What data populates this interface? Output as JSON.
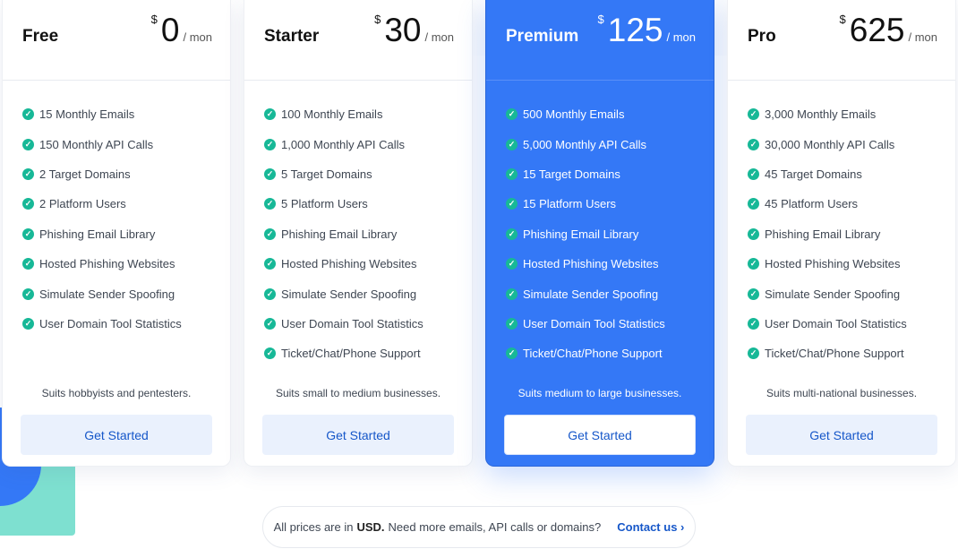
{
  "colors": {
    "accent": "#3478f6",
    "check": "#17b897",
    "button_text": "#1657c9"
  },
  "plans": [
    {
      "name": "Free",
      "currency": "$",
      "price": "0",
      "period": "/ mon",
      "tagline": "Suits hobbyists and pentesters.",
      "cta": "Get Started",
      "highlighted": false,
      "features": [
        "15 Monthly Emails",
        "150 Monthly API Calls",
        "2 Target Domains",
        "2 Platform Users",
        "Phishing Email Library",
        "Hosted Phishing Websites",
        "Simulate Sender Spoofing",
        "User Domain Tool Statistics"
      ]
    },
    {
      "name": "Starter",
      "currency": "$",
      "price": "30",
      "period": "/ mon",
      "tagline": "Suits small to medium businesses.",
      "cta": "Get Started",
      "highlighted": false,
      "features": [
        "100 Monthly Emails",
        "1,000 Monthly API Calls",
        "5 Target Domains",
        "5 Platform Users",
        "Phishing Email Library",
        "Hosted Phishing Websites",
        "Simulate Sender Spoofing",
        "User Domain Tool Statistics",
        "Ticket/Chat/Phone Support"
      ]
    },
    {
      "name": "Premium",
      "currency": "$",
      "price": "125",
      "period": "/ mon",
      "tagline": "Suits medium to large businesses.",
      "cta": "Get Started",
      "highlighted": true,
      "features": [
        "500 Monthly Emails",
        "5,000 Monthly API Calls",
        "15 Target Domains",
        "15 Platform Users",
        "Phishing Email Library",
        "Hosted Phishing Websites",
        "Simulate Sender Spoofing",
        "User Domain Tool Statistics",
        "Ticket/Chat/Phone Support"
      ]
    },
    {
      "name": "Pro",
      "currency": "$",
      "price": "625",
      "period": "/ mon",
      "tagline": "Suits multi-national businesses.",
      "cta": "Get Started",
      "highlighted": false,
      "features": [
        "3,000 Monthly Emails",
        "30,000 Monthly API Calls",
        "45 Target Domains",
        "45 Platform Users",
        "Phishing Email Library",
        "Hosted Phishing Websites",
        "Simulate Sender Spoofing",
        "User Domain Tool Statistics",
        "Ticket/Chat/Phone Support"
      ]
    }
  ],
  "note": {
    "prefix": "All prices are in",
    "currency": "USD.",
    "suffix": "Need more emails, API calls or domains?",
    "link": "Contact us",
    "link_icon": "chevron-right-icon"
  }
}
